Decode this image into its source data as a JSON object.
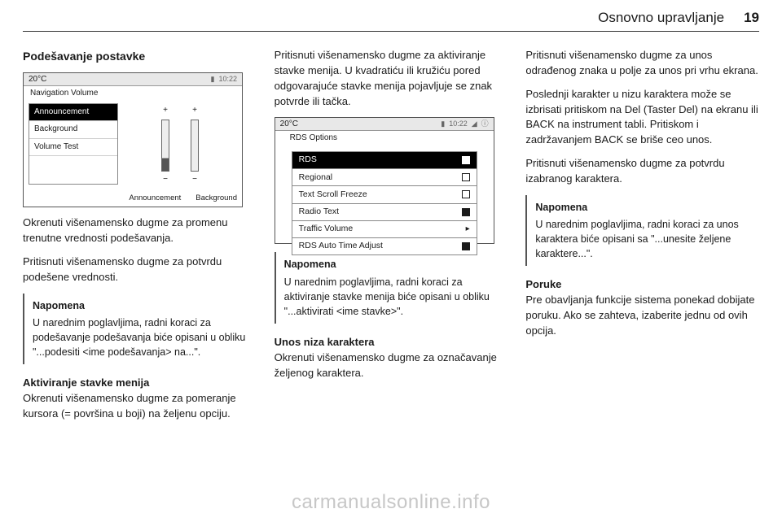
{
  "header": {
    "title": "Osnovno upravljanje",
    "page_number": "19"
  },
  "col1": {
    "subtitle": "Podešavanje postavke",
    "p1": "Okrenuti višenamensko dugme za promenu trenutne vrednosti podešavanja.",
    "p2": "Pritisnuti višenamensko dugme za potvrdu podešene vrednosti.",
    "note_title": "Napomena",
    "note_body": "U narednim poglavljima, radni koraci za podešavanje podešavanja biće opisani u obliku \"...podesiti <ime podešavanja> na...\".",
    "p3_title": "Aktiviranje stavke menija",
    "p3_body": "Okrenuti višenamensko dugme za pomeranje kursora (= površina u boji) na željenu opciju."
  },
  "col2": {
    "p1": "Pritisnuti višenamensko dugme za aktiviranje stavke menija. U kvadratiću ili kružiću pored odgovarajuće stavke menija pojavljuje se znak potvrde ili tačka.",
    "note_title": "Napomena",
    "note_body": "U narednim poglavljima, radni koraci za aktiviranje stavke menija biće opisani u obliku \"...aktivirati <ime stavke>\".",
    "p2_title": "Unos niza karaktera",
    "p2_body": "Okrenuti višenamensko dugme za označavanje željenog karaktera."
  },
  "col3": {
    "p1": "Pritisnuti višenamensko dugme za unos odrađenog znaka u polje za unos pri vrhu ekrana.",
    "p2": "Poslednji karakter u nizu karaktera može se izbrisati pritiskom na Del (Taster Del) na ekranu ili BACK na instrument tabli. Pritiskom i zadržavanjem BACK se briše ceo unos.",
    "p3": "Pritisnuti višenamensko dugme za potvrdu izabranog karaktera.",
    "note_title": "Napomena",
    "note_body": "U narednim poglavljima, radni koraci za unos karaktera biće opisani sa \"...unesite željene karaktere...\".",
    "p4_title": "Poruke",
    "p4_body": "Pre obavljanja funkcije sistema ponekad dobijate poruku. Ako se zahteva, izaberite jednu od ovih opcija."
  },
  "screenshot1": {
    "temp": "20°C",
    "time": "10:22",
    "title": "Navigation Volume",
    "items": [
      "Announcement",
      "Background",
      "Volume Test"
    ],
    "selected_index": 0,
    "slider1_fill_pct": 25,
    "footer_left": "Announcement",
    "footer_right": "Background"
  },
  "screenshot2": {
    "temp": "20°C",
    "time": "10:22",
    "title": "RDS Options",
    "rows": [
      {
        "label": "RDS",
        "state": "checked",
        "selected": true
      },
      {
        "label": "Regional",
        "state": "unchecked",
        "selected": false
      },
      {
        "label": "Text Scroll Freeze",
        "state": "unchecked",
        "selected": false
      },
      {
        "label": "Radio Text",
        "state": "checked",
        "selected": false
      },
      {
        "label": "Traffic Volume",
        "state": "arrow",
        "selected": false
      },
      {
        "label": "RDS Auto Time Adjust",
        "state": "checked",
        "selected": false
      }
    ]
  },
  "watermark": "carmanualsonline.info"
}
